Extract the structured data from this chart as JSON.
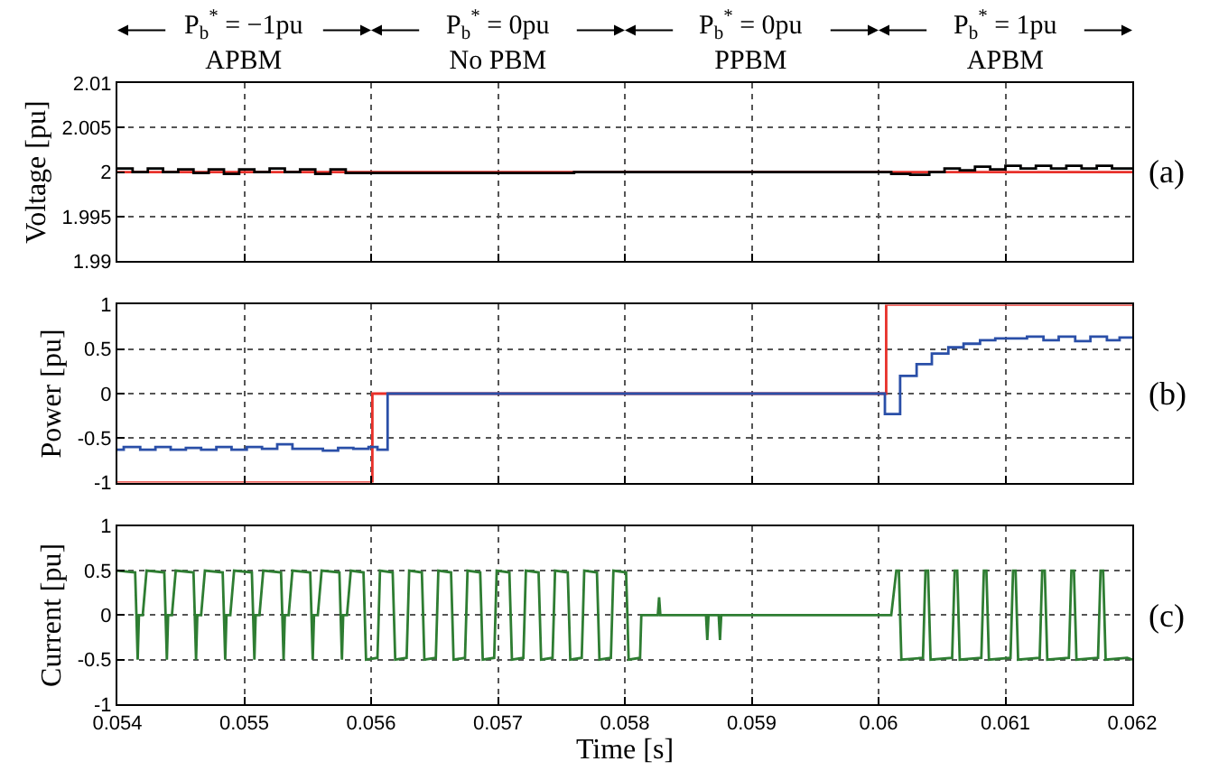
{
  "chart_data": [
    {
      "type": "step",
      "ylabel": "Voltage [pu]",
      "xlim": [
        0.054,
        0.062
      ],
      "ylim": [
        1.99,
        2.01
      ],
      "xticks": [
        0.054,
        0.055,
        0.056,
        0.057,
        0.058,
        0.059,
        0.06,
        0.061,
        0.062
      ],
      "yticks": [
        1.99,
        1.995,
        2,
        2.005,
        2.01
      ],
      "grid": true,
      "tick_labels": "y",
      "annotations": [
        "P$_{b}$$^{*}$ = −1pu\nAPBM",
        "P$_{b}$$^{*}$ = 0pu\nNo PBM",
        "P$_{b}$$^{*}$ = 0pu\nPPBM",
        "P$_{b}$$^{*}$ = 1pu\nAPBM",
        "(a)"
      ],
      "series": [
        {
          "color": "#e8312a",
          "x": [
            0.054,
            0.062
          ],
          "values": [
            2,
            2
          ]
        },
        {
          "color": "#000000",
          "x": [
            0.054,
            0.05412,
            0.05424,
            0.05436,
            0.05448,
            0.0546,
            0.05472,
            0.05484,
            0.05496,
            0.05508,
            0.0552,
            0.05532,
            0.05544,
            0.05556,
            0.05568,
            0.0558,
            0.05592,
            0.0576,
            0.0601,
            0.06025,
            0.0604,
            0.06052,
            0.06064,
            0.06076,
            0.06088,
            0.061,
            0.06112,
            0.06124,
            0.06136,
            0.06148,
            0.0616,
            0.06172,
            0.06184,
            0.062
          ],
          "values": [
            2.0004,
            2.0,
            2.0004,
            2.0,
            2.0003,
            1.9999,
            2.0003,
            1.9998,
            2.0003,
            2.0,
            2.0004,
            2.0,
            2.0003,
            1.9998,
            2.0003,
            1.9999,
            1.9999,
            2.0,
            1.9998,
            1.9997,
            2.0,
            2.0004,
            2.0002,
            2.0006,
            2.0003,
            2.0007,
            2.0004,
            2.0007,
            2.0004,
            2.0007,
            2.0004,
            2.0007,
            2.0004,
            2.0004
          ]
        }
      ]
    },
    {
      "type": "step",
      "ylabel": "Power [pu]",
      "xlim": [
        0.054,
        0.062
      ],
      "ylim": [
        -1,
        1
      ],
      "xticks": [
        0.054,
        0.055,
        0.056,
        0.057,
        0.058,
        0.059,
        0.06,
        0.061,
        0.062
      ],
      "yticks": [
        -1,
        -0.5,
        0,
        0.5,
        1
      ],
      "grid": true,
      "tick_labels": "y",
      "annotations": [
        "(b)"
      ],
      "series": [
        {
          "color": "#e8312a",
          "x": [
            0.054,
            0.05601,
            0.06006,
            0.062
          ],
          "values": [
            -1,
            0,
            1,
            1
          ]
        },
        {
          "color": "#2a4fa8",
          "x": [
            0.054,
            0.05405,
            0.05418,
            0.0543,
            0.05442,
            0.05454,
            0.05466,
            0.05478,
            0.0549,
            0.05502,
            0.05514,
            0.05526,
            0.05538,
            0.0555,
            0.05562,
            0.05574,
            0.05586,
            0.05598,
            0.05605,
            0.05613,
            0.06005,
            0.06017,
            0.0603,
            0.06042,
            0.06055,
            0.06067,
            0.0608,
            0.06092,
            0.06105,
            0.06117,
            0.0613,
            0.06142,
            0.06155,
            0.06167,
            0.0618,
            0.0619,
            0.062
          ],
          "values": [
            -0.63,
            -0.6,
            -0.63,
            -0.6,
            -0.63,
            -0.61,
            -0.63,
            -0.6,
            -0.63,
            -0.6,
            -0.62,
            -0.57,
            -0.62,
            -0.62,
            -0.64,
            -0.61,
            -0.62,
            -0.6,
            -0.63,
            0,
            -0.23,
            0.2,
            0.33,
            0.45,
            0.52,
            0.56,
            0.6,
            0.62,
            0.62,
            0.64,
            0.6,
            0.64,
            0.59,
            0.64,
            0.6,
            0.63,
            0.63
          ]
        }
      ]
    },
    {
      "type": "line",
      "xlabel": "Time [s]",
      "ylabel": "Current [pu]",
      "xlim": [
        0.054,
        0.062
      ],
      "ylim": [
        -1,
        1
      ],
      "xticks": [
        0.054,
        0.055,
        0.056,
        0.057,
        0.058,
        0.059,
        0.06,
        0.061,
        0.062
      ],
      "yticks": [
        -1,
        -0.5,
        0,
        0.5,
        1
      ],
      "grid": true,
      "annotations": [
        "(c)"
      ],
      "series": [
        {
          "color": "#2e7d32",
          "x": [
            0.054,
            0.05414,
            0.05415,
            0.05416,
            0.05417,
            0.0542,
            0.05423,
            0.05437,
            0.05438,
            0.05439,
            0.0544,
            0.05443,
            0.05446,
            0.0546,
            0.05461,
            0.05462,
            0.05463,
            0.05466,
            0.05469,
            0.05483,
            0.05484,
            0.05485,
            0.05486,
            0.05489,
            0.05492,
            0.05506,
            0.05507,
            0.05508,
            0.05509,
            0.05512,
            0.05515,
            0.05529,
            0.0553,
            0.05531,
            0.05532,
            0.05535,
            0.05538,
            0.05552,
            0.05553,
            0.05554,
            0.05555,
            0.05558,
            0.05561,
            0.05575,
            0.05576,
            0.05577,
            0.05578,
            0.05581,
            0.05584,
            0.05594,
            0.05595,
            0.05596,
            0.05605,
            0.05606,
            0.05607,
            0.05617,
            0.05618,
            0.05619,
            0.05628,
            0.05629,
            0.0563,
            0.0564,
            0.05641,
            0.05642,
            0.05651,
            0.05652,
            0.05653,
            0.05663,
            0.05664,
            0.05665,
            0.05674,
            0.05675,
            0.05676,
            0.05686,
            0.05687,
            0.05688,
            0.05697,
            0.05698,
            0.05699,
            0.05709,
            0.0571,
            0.05711,
            0.0572,
            0.05721,
            0.05722,
            0.05732,
            0.05733,
            0.05734,
            0.05743,
            0.05744,
            0.05745,
            0.05755,
            0.05756,
            0.05757,
            0.05766,
            0.05767,
            0.05768,
            0.05778,
            0.05779,
            0.0578,
            0.05789,
            0.0579,
            0.05791,
            0.05801,
            0.05802,
            0.05803,
            0.05812,
            0.05813,
            0.0582,
            0.05826,
            0.05827,
            0.05828,
            0.05864,
            0.05865,
            0.05866,
            0.05874,
            0.05875,
            0.05876,
            0.0601,
            0.06014,
            0.06016,
            0.06017,
            0.06018,
            0.06035,
            0.06037,
            0.06039,
            0.0604,
            0.06041,
            0.06058,
            0.0606,
            0.06062,
            0.06063,
            0.06064,
            0.06081,
            0.06083,
            0.06085,
            0.06086,
            0.06087,
            0.06104,
            0.06106,
            0.06108,
            0.06109,
            0.0611,
            0.06127,
            0.06129,
            0.06131,
            0.06132,
            0.06133,
            0.0615,
            0.06152,
            0.06154,
            0.06155,
            0.06156,
            0.06173,
            0.06175,
            0.06177,
            0.06178,
            0.06179,
            0.06196,
            0.062
          ],
          "values": [
            0.5,
            0.48,
            0,
            -0.5,
            0,
            0,
            0.5,
            0.48,
            0,
            -0.5,
            0,
            0,
            0.5,
            0.48,
            0,
            -0.5,
            0,
            0,
            0.5,
            0.48,
            0,
            -0.5,
            0,
            0,
            0.5,
            0.48,
            0,
            -0.5,
            0,
            0,
            0.5,
            0.48,
            0,
            -0.5,
            0,
            0,
            0.5,
            0.48,
            0,
            -0.5,
            0,
            0,
            0.5,
            0.48,
            0,
            -0.5,
            0,
            0,
            0.5,
            0.48,
            0,
            -0.5,
            -0.48,
            0,
            0.5,
            0.48,
            0,
            -0.5,
            -0.48,
            0,
            0.5,
            0.48,
            0,
            -0.5,
            -0.48,
            0,
            0.5,
            0.48,
            0,
            -0.5,
            -0.48,
            0,
            0.5,
            0.48,
            0,
            -0.5,
            -0.48,
            0,
            0.5,
            0.48,
            0,
            -0.5,
            -0.48,
            0,
            0.5,
            0.48,
            0,
            -0.5,
            -0.48,
            0,
            0.5,
            0.48,
            0,
            -0.5,
            -0.48,
            0,
            0.5,
            0.48,
            0,
            -0.5,
            -0.48,
            0,
            0.5,
            0.48,
            0,
            -0.5,
            -0.48,
            0,
            0,
            0,
            0.2,
            0,
            0,
            -0.28,
            0,
            0,
            -0.28,
            0,
            0,
            0.5,
            0.5,
            0,
            -0.5,
            -0.48,
            0.5,
            0.5,
            0,
            -0.5,
            -0.48,
            0.5,
            0.5,
            0,
            -0.5,
            -0.48,
            0.5,
            0.5,
            0,
            -0.5,
            -0.48,
            0.5,
            0.5,
            0,
            -0.5,
            -0.48,
            0.5,
            0.5,
            0,
            -0.5,
            -0.48,
            0.5,
            0.5,
            0,
            -0.5,
            -0.48,
            0.5,
            0.5,
            0,
            -0.5,
            -0.48,
            -0.5
          ]
        }
      ]
    }
  ]
}
